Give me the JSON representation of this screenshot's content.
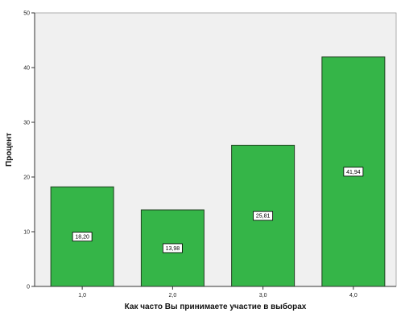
{
  "chart_data": {
    "type": "bar",
    "title": "",
    "xlabel": "Как часто Вы принимаете участие в выборах",
    "ylabel": "Процент",
    "categories": [
      "1,0",
      "2,0",
      "3,0",
      "4,0"
    ],
    "values": [
      18.2,
      13.98,
      25.81,
      41.94
    ],
    "data_labels": [
      "18,20",
      "13,98",
      "25,81",
      "41,94"
    ],
    "ylim": [
      0,
      50
    ],
    "yticks": [
      0,
      10,
      20,
      30,
      40,
      50
    ],
    "ytick_labels": [
      "0",
      "10",
      "20",
      "30",
      "40",
      "50"
    ],
    "grid": false,
    "legend": "none",
    "colors": {
      "bar_fill": "#35B548",
      "bar_stroke": "#1f3f1f",
      "plot_background": "#f0f0f0",
      "axis": "#333333"
    }
  }
}
